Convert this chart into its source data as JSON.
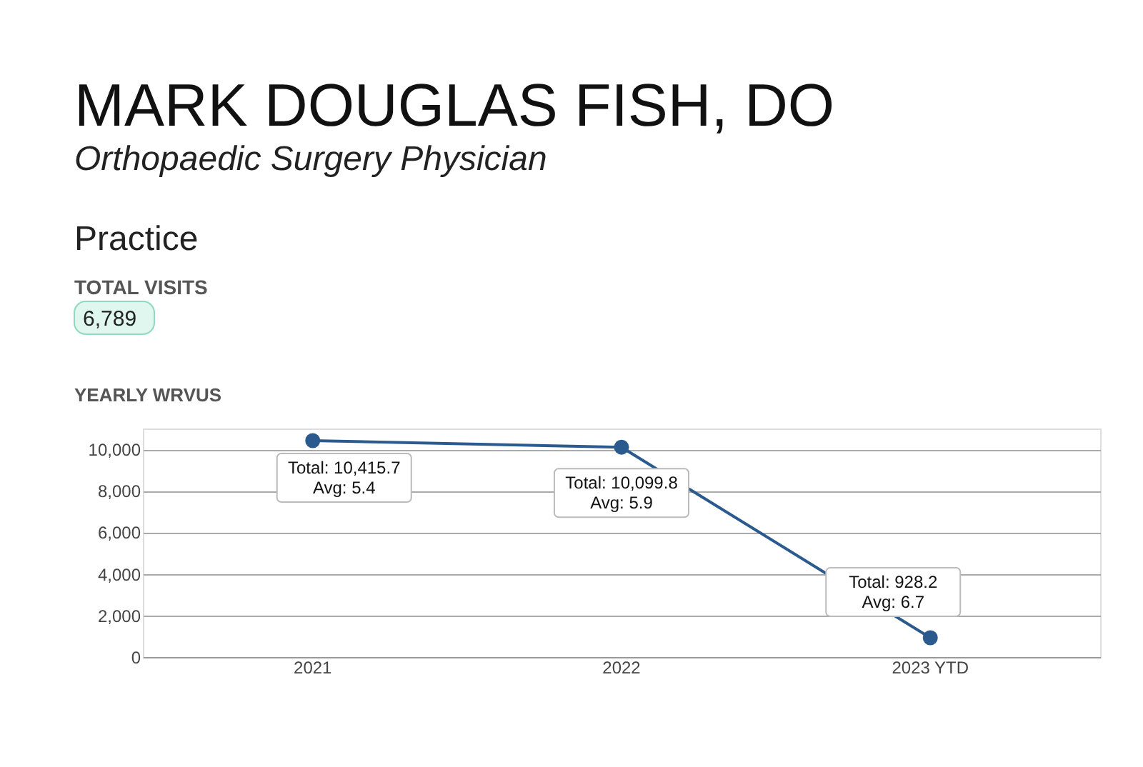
{
  "chart_data": {
    "type": "line",
    "title": "MARK DOUGLAS FISH, DO",
    "subtitle": "Orthopaedic Surgery Physician",
    "annotations": [
      "Practice",
      "TOTAL VISITS",
      "6,789",
      "YEARLY WRVUS",
      {
        "text": "Total: 10,415.7\nAvg: 5.4",
        "x": "2021",
        "y": 10415.7
      },
      {
        "text": "Total: 10,099.8\nAvg: 5.9",
        "x": "2022",
        "y": 10099.8
      },
      {
        "text": "Total: 928.2\nAvg: 6.7",
        "x": "2023 YTD",
        "y": 928.2
      }
    ],
    "categories": [
      "2021",
      "2022",
      "2023 YTD"
    ],
    "series": [
      {
        "color": "#2b5a8e",
        "values": [
          10415.7,
          10099.8,
          928.2
        ]
      }
    ],
    "ylim": [
      0,
      11000
    ],
    "yticks": [
      0,
      {
        "value": 2000,
        "label": "2,000"
      },
      {
        "value": 4000,
        "label": "4,000"
      },
      {
        "value": 6000,
        "label": "6,000"
      },
      {
        "value": 8000,
        "label": "8,000"
      },
      {
        "value": 10000,
        "label": "10,000"
      }
    ],
    "grid": "y",
    "marker": "circle",
    "line_style": "solid"
  }
}
